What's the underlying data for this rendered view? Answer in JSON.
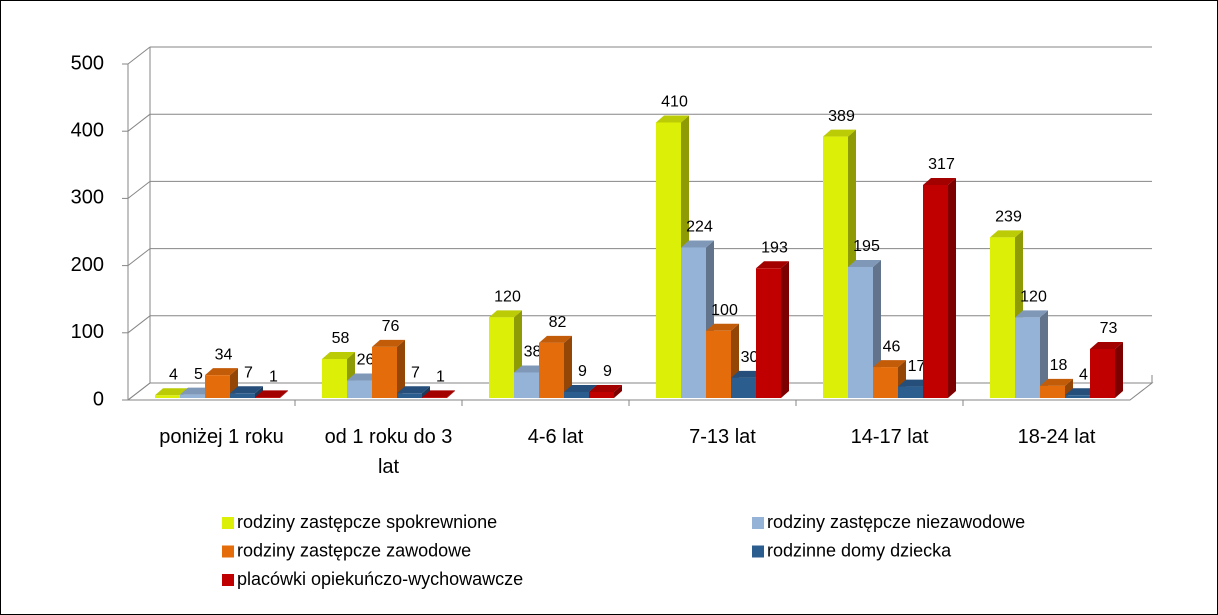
{
  "chart_data": {
    "type": "bar3d",
    "categories": [
      "poniżej 1 roku",
      "od 1 roku do 3 lat",
      "4-6 lat",
      "7-13 lat",
      "14-17 lat",
      "18-24 lat"
    ],
    "series": [
      {
        "name": "rodziny zastępcze spokrewnione",
        "color": "#dcef06",
        "values": [
          4,
          58,
          120,
          410,
          389,
          239
        ]
      },
      {
        "name": "rodziny zastępcze niezawodowe",
        "color": "#95b3d7",
        "values": [
          5,
          26,
          38,
          224,
          195,
          120
        ]
      },
      {
        "name": "rodziny zastępcze zawodowe",
        "color": "#e46c0a",
        "values": [
          34,
          76,
          82,
          100,
          46,
          18
        ]
      },
      {
        "name": "rodzinne domy dziecka",
        "color": "#2c5d8f",
        "values": [
          7,
          7,
          9,
          30,
          17,
          4
        ]
      },
      {
        "name": "placówki opiekuńczo-wychowawcze",
        "color": "#c00000",
        "values": [
          1,
          1,
          9,
          193,
          317,
          73
        ]
      }
    ],
    "ylim": [
      0,
      500
    ],
    "yticks": [
      0,
      100,
      200,
      300,
      400,
      500
    ],
    "grid": true,
    "legend": "bottom"
  }
}
